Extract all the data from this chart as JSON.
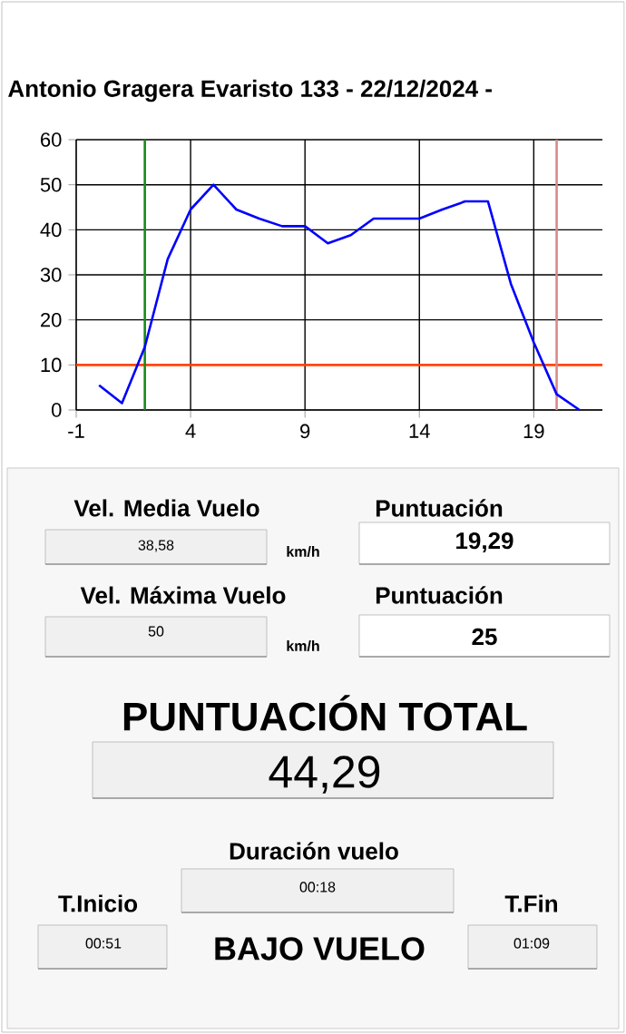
{
  "chart_data": {
    "type": "line",
    "title": "Antonio Gragera Evaristo 133 - 22/12/2024 -",
    "x": [
      0,
      1,
      2,
      3,
      4,
      5,
      6,
      7,
      8,
      9,
      10,
      11,
      12,
      13,
      14,
      15,
      16,
      17,
      18,
      19,
      20,
      21
    ],
    "series": [
      {
        "color": "#0000ff",
        "values": [
          5.5,
          1.5,
          14,
          33.5,
          44.5,
          50,
          44.5,
          42.5,
          40.8,
          40.8,
          37,
          38.8,
          42.5,
          42.5,
          42.5,
          44.5,
          46.3,
          46.3,
          28,
          15,
          3.5,
          0
        ]
      }
    ],
    "xlim": [
      -1,
      22
    ],
    "xticks": [
      -1,
      4,
      9,
      14,
      19
    ],
    "ylim": [
      0,
      60
    ],
    "yticks": [
      0,
      10,
      20,
      30,
      40,
      50,
      60
    ],
    "grid": true,
    "marker": "none",
    "line_style": "solid",
    "ref_lines": [
      {
        "axis": "y",
        "value": 10,
        "color": "#ff4500"
      },
      {
        "axis": "x",
        "value": 2,
        "color": "#1a8a1a"
      },
      {
        "axis": "x",
        "value": 20,
        "color": "#d98a8a"
      }
    ],
    "annotations": [
      "Vel. Media Vuelo",
      "38,58",
      "km/h",
      "Puntuación",
      "19,29",
      "Vel. Máxima Vuelo",
      "50",
      "km/h",
      "Puntuación",
      "25",
      "PUNTUACIÓN TOTAL",
      "44,29",
      "Duración vuelo",
      "00:18",
      "T.Inicio",
      "00:51",
      "BAJO VUELO",
      "T.Fin",
      "01:09"
    ]
  }
}
